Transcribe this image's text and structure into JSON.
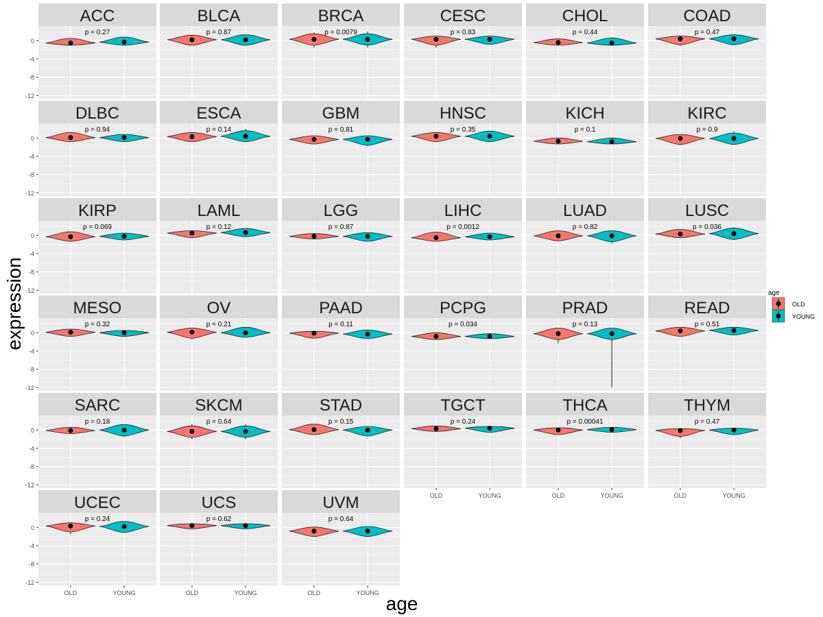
{
  "chart_data": {
    "type": "violin",
    "xlabel": "age",
    "ylabel": "expression",
    "categories": [
      "OLD",
      "YOUNG"
    ],
    "yticks": [
      0,
      -4,
      -8,
      -12
    ],
    "ylim": [
      -12.7,
      3.2
    ],
    "legend": {
      "title": "age",
      "placement": "right",
      "entries": [
        {
          "label": "OLD",
          "color": "#F8766D"
        },
        {
          "label": "YOUNG",
          "color": "#00BFC4"
        }
      ]
    },
    "facets": [
      {
        "name": "ACC",
        "p": "p = 0.27",
        "old": {
          "mean": -0.5,
          "min": -1,
          "max": 0.5
        },
        "young": {
          "mean": -0.3,
          "min": -1,
          "max": 0.8
        }
      },
      {
        "name": "BLCA",
        "p": "p = 0.87",
        "old": {
          "mean": 0.2,
          "min": -1,
          "max": 1.2
        },
        "young": {
          "mean": 0.2,
          "min": -1,
          "max": 1.3
        }
      },
      {
        "name": "BRCA",
        "p": "p = 0.0079",
        "old": {
          "mean": 0.3,
          "min": -1.5,
          "max": 1.8
        },
        "young": {
          "mean": 0.3,
          "min": -1.5,
          "max": 2
        }
      },
      {
        "name": "CESC",
        "p": "p = 0.83",
        "old": {
          "mean": 0.3,
          "min": -1.5,
          "max": 1
        },
        "young": {
          "mean": 0.3,
          "min": -0.8,
          "max": 1
        }
      },
      {
        "name": "CHOL",
        "p": "p = 0.44",
        "old": {
          "mean": -0.4,
          "min": -1,
          "max": 0.4
        },
        "young": {
          "mean": -0.5,
          "min": -1,
          "max": 0.6
        }
      },
      {
        "name": "COAD",
        "p": "p = 0.47",
        "old": {
          "mean": 0.4,
          "min": -1.2,
          "max": 1
        },
        "young": {
          "mean": 0.4,
          "min": -1,
          "max": 1.3
        }
      },
      {
        "name": "DLBC",
        "p": "p = 0.94",
        "old": {
          "mean": 0.1,
          "min": -0.8,
          "max": 1.2
        },
        "young": {
          "mean": 0.1,
          "min": -0.8,
          "max": 0.8
        }
      },
      {
        "name": "ESCA",
        "p": "p = 0.14",
        "old": {
          "mean": 0.3,
          "min": -0.8,
          "max": 1.2
        },
        "young": {
          "mean": 0.4,
          "min": -0.8,
          "max": 2
        }
      },
      {
        "name": "GBM",
        "p": "p = 0.81",
        "old": {
          "mean": -0.3,
          "min": -1.3,
          "max": 0.5
        },
        "young": {
          "mean": -0.3,
          "min": -1.8,
          "max": 0.5
        }
      },
      {
        "name": "HNSC",
        "p": "p = 0.35",
        "old": {
          "mean": 0.4,
          "min": -0.8,
          "max": 1.2
        },
        "young": {
          "mean": 0.4,
          "min": -0.8,
          "max": 1.5
        }
      },
      {
        "name": "KICH",
        "p": "p = 0.1",
        "old": {
          "mean": -0.7,
          "min": -1.3,
          "max": 0
        },
        "young": {
          "mean": -0.8,
          "min": -1.3,
          "max": 0
        }
      },
      {
        "name": "KIRC",
        "p": "p = 0.9",
        "old": {
          "mean": -0.1,
          "min": -1.5,
          "max": 0.8
        },
        "young": {
          "mean": -0.1,
          "min": -1.5,
          "max": 1.5
        }
      },
      {
        "name": "KIRP",
        "p": "p = 0.069",
        "old": {
          "mean": -0.3,
          "min": -1.3,
          "max": 0.8
        },
        "young": {
          "mean": -0.2,
          "min": -1,
          "max": 0.5
        }
      },
      {
        "name": "LAML",
        "p": "p = 0.12",
        "old": {
          "mean": 0.5,
          "min": -0.5,
          "max": 1
        },
        "young": {
          "mean": 0.6,
          "min": -0.3,
          "max": 1.5
        }
      },
      {
        "name": "LGG",
        "p": "p = 0.87",
        "old": {
          "mean": -0.2,
          "min": -0.8,
          "max": 0.4
        },
        "young": {
          "mean": -0.2,
          "min": -1.3,
          "max": 0.6
        }
      },
      {
        "name": "LIHC",
        "p": "p = 0.0012",
        "old": {
          "mean": -0.5,
          "min": -1.3,
          "max": 0.8
        },
        "young": {
          "mean": -0.3,
          "min": -1,
          "max": 0.5
        }
      },
      {
        "name": "LUAD",
        "p": "p = 0.82",
        "old": {
          "mean": -0.1,
          "min": -1.2,
          "max": 1
        },
        "young": {
          "mean": -0.1,
          "min": -1.8,
          "max": 1
        }
      },
      {
        "name": "LUSC",
        "p": "p = 0.036",
        "old": {
          "mean": 0.3,
          "min": -0.5,
          "max": 1.3
        },
        "young": {
          "mean": 0.4,
          "min": -1,
          "max": 1.8
        }
      },
      {
        "name": "MESO",
        "p": "p = 0.32",
        "old": {
          "mean": 0.1,
          "min": -0.8,
          "max": 0.8
        },
        "young": {
          "mean": 0,
          "min": -0.8,
          "max": 0.5
        }
      },
      {
        "name": "OV",
        "p": "p = 0.21",
        "old": {
          "mean": 0.1,
          "min": -1.5,
          "max": 1
        },
        "young": {
          "mean": 0,
          "min": -1,
          "max": 1.2
        }
      },
      {
        "name": "PAAD",
        "p": "p = 0.11",
        "old": {
          "mean": -0.1,
          "min": -1.2,
          "max": 0.3
        },
        "young": {
          "mean": -0.3,
          "min": -1.3,
          "max": 0.6
        }
      },
      {
        "name": "PCPG",
        "p": "p = 0.034",
        "old": {
          "mean": -0.8,
          "min": -1.5,
          "max": 0
        },
        "young": {
          "mean": -0.8,
          "min": -1.3,
          "max": -0.2
        }
      },
      {
        "name": "PRAD",
        "p": "p = 0.13",
        "old": {
          "mean": -0.2,
          "min": -2.3,
          "max": 1
        },
        "young": {
          "mean": -0.2,
          "min": -12,
          "max": 1
        }
      },
      {
        "name": "READ",
        "p": "p = 0.51",
        "old": {
          "mean": 0.4,
          "min": -0.8,
          "max": 1.2
        },
        "young": {
          "mean": 0.5,
          "min": -0.5,
          "max": 1.2
        }
      },
      {
        "name": "SARC",
        "p": "p = 0.18",
        "old": {
          "mean": -0.1,
          "min": -0.8,
          "max": 0.6
        },
        "young": {
          "mean": 0,
          "min": -1.5,
          "max": 1.3
        }
      },
      {
        "name": "SKCM",
        "p": "p = 0.64",
        "old": {
          "mean": -0.3,
          "min": -2,
          "max": 1.3
        },
        "young": {
          "mean": -0.3,
          "min": -2,
          "max": 1.3
        }
      },
      {
        "name": "STAD",
        "p": "p = 0.15",
        "old": {
          "mean": 0.1,
          "min": -1,
          "max": 1.3
        },
        "young": {
          "mean": 0,
          "min": -1.3,
          "max": 0.8
        }
      },
      {
        "name": "TGCT",
        "p": "p = 0.24",
        "old": {
          "mean": 0.3,
          "min": -0.3,
          "max": 0.9
        },
        "young": {
          "mean": 0.4,
          "min": -0.5,
          "max": 0.8
        }
      },
      {
        "name": "THCA",
        "p": "p = 0.00041",
        "old": {
          "mean": 0,
          "min": -1,
          "max": 0.5
        },
        "young": {
          "mean": 0.1,
          "min": -0.5,
          "max": 0.6
        }
      },
      {
        "name": "THYM",
        "p": "p = 0.47",
        "old": {
          "mean": -0.1,
          "min": -1.8,
          "max": 0.3
        },
        "young": {
          "mean": 0,
          "min": -1,
          "max": 0.4
        }
      },
      {
        "name": "UCEC",
        "p": "p = 0.24",
        "old": {
          "mean": 0.3,
          "min": -1.5,
          "max": 1
        },
        "young": {
          "mean": 0.2,
          "min": -1.2,
          "max": 1.3
        }
      },
      {
        "name": "UCS",
        "p": "p = 0.62",
        "old": {
          "mean": 0.4,
          "min": -0.3,
          "max": 0.8
        },
        "young": {
          "mean": 0.4,
          "min": -0.3,
          "max": 0.8
        }
      },
      {
        "name": "UVM",
        "p": "p = 0.64",
        "old": {
          "mean": -0.8,
          "min": -2,
          "max": 0.1
        },
        "young": {
          "mean": -0.8,
          "min": -2,
          "max": 0.2
        }
      }
    ]
  }
}
